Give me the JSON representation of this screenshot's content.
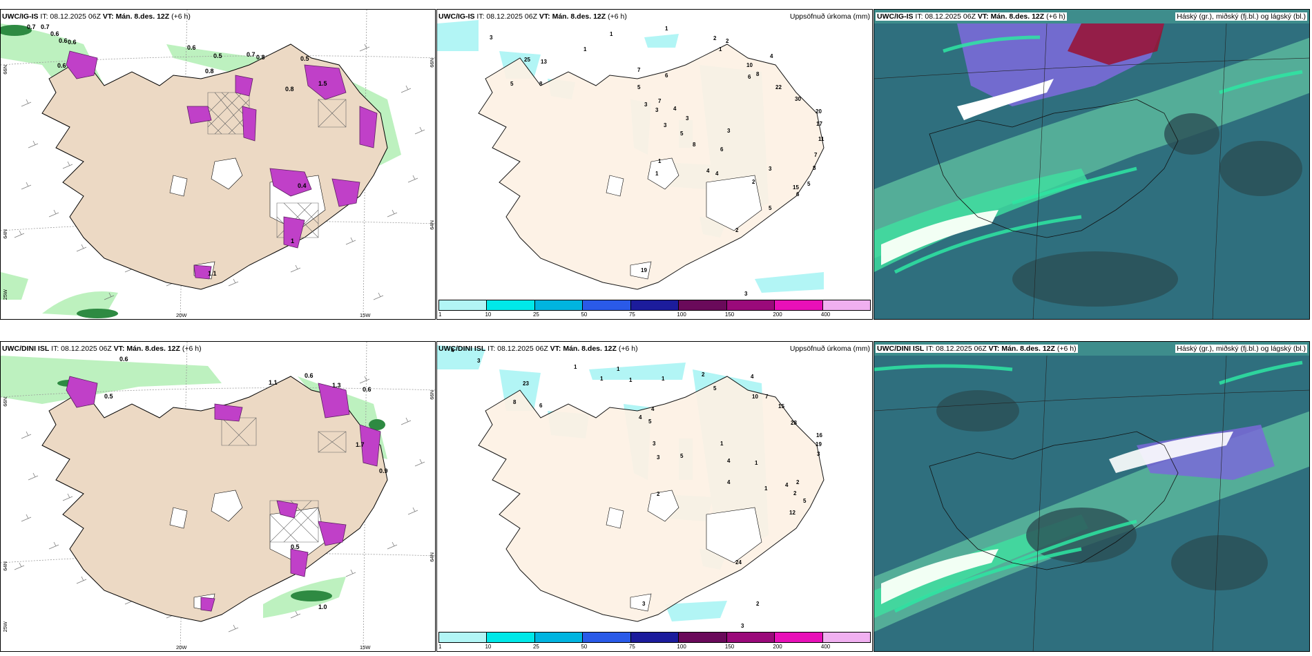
{
  "panels": [
    {
      "model": "UWC/IG-IS",
      "rest": " IT: 08.12.2025 06Z ",
      "vt_bold": "VT: Mán. 8.des. 12Z",
      "lead": " (+6 h)"
    },
    {
      "model": "UWC/IG-IS",
      "rest": " IT: 08.12.2025 06Z ",
      "vt_bold": "VT: Mán. 8.des. 12Z",
      "lead": " (+6 h)",
      "right": "Uppsöfnuð úrkoma (mm)"
    },
    {
      "model": "UWC/IG-IS",
      "rest": " IT: 08.12.2025 06Z ",
      "vt_bold": "VT: Mán. 8.des. 12Z",
      "lead": " (+6 h)",
      "right": "Háský (gr.), miðský (fj.bl.) og lágský (bl.)"
    },
    {
      "model": "UWC/DINI ISL",
      "rest": " IT: 08.12.2025 06Z ",
      "vt_bold": "VT: Mán. 8.des. 12Z",
      "lead": " (+6 h)"
    },
    {
      "model": "UWC/DINI ISL",
      "rest": " IT: 08.12.2025 06Z ",
      "vt_bold": "VT: Mán. 8.des. 12Z",
      "lead": " (+6 h)",
      "right": "Uppsöfnuð úrkoma (mm)"
    },
    {
      "model": "UWC/DINI ISL",
      "rest": " IT: 08.12.2025 06Z ",
      "vt_bold": "VT: Mán. 8.des. 12Z",
      "lead": " (+6 h)",
      "right": "Háský (gr.), miðský (fj.bl.) og lágský (bl.)"
    }
  ],
  "axis_ticks": {
    "lon_20": "20W",
    "lon_15": "15W",
    "lon_25": "25W",
    "lat_66": "66N",
    "lat_64": "64N",
    "lat_66b": "66N",
    "lat_64b": "64N"
  },
  "colorbar": {
    "colors": [
      "#b2f5f5",
      "#00e8e8",
      "#00b4e0",
      "#2a5ae8",
      "#1c1c9c",
      "#6a0a5a",
      "#9a0a7a",
      "#e810b8",
      "#f0b0f0"
    ],
    "labels": [
      "1",
      "10",
      "25",
      "50",
      "75",
      "100",
      "150",
      "200",
      "400"
    ]
  },
  "precip_top": {
    "labels": [
      "3",
      "1",
      "1",
      "1",
      "2",
      "2",
      "1",
      "4",
      "10",
      "7",
      "6",
      "8",
      "6",
      "22",
      "30",
      "20",
      "17",
      "11",
      "7",
      "8",
      "5",
      "6",
      "7",
      "3",
      "3",
      "5",
      "4",
      "5",
      "3",
      "3",
      "6",
      "4",
      "4",
      "2",
      "3",
      "15",
      "5",
      "2",
      "1",
      "1",
      "19",
      "3",
      "25",
      "13",
      "5",
      "8",
      "3",
      "8"
    ]
  },
  "precip_bottom": {
    "labels": [
      "4",
      "3",
      "1",
      "1",
      "1",
      "1",
      "1",
      "2",
      "5",
      "4",
      "10",
      "7",
      "15",
      "28",
      "16",
      "19",
      "3",
      "23",
      "8",
      "6",
      "4",
      "4",
      "5",
      "3",
      "3",
      "5",
      "1",
      "4",
      "4",
      "1",
      "2",
      "4",
      "2",
      "5",
      "12",
      "1",
      "2",
      "24",
      "3",
      "2",
      "3"
    ]
  },
  "wind_top": {
    "labels": [
      "0.7",
      "0.7",
      "0.6",
      "0.6",
      "0.6",
      "0.6",
      "0.5",
      "0.8",
      "0.7",
      "0.8",
      "0.5",
      "0.6",
      "0.8",
      "0.4",
      "1.5",
      "1",
      "1.1"
    ]
  },
  "wind_bottom": {
    "labels": [
      "0.6",
      "1.0",
      "0.6",
      "0.6",
      "1.7",
      "1.3",
      "1.1",
      "0.5",
      "0.9",
      "0.5"
    ]
  }
}
